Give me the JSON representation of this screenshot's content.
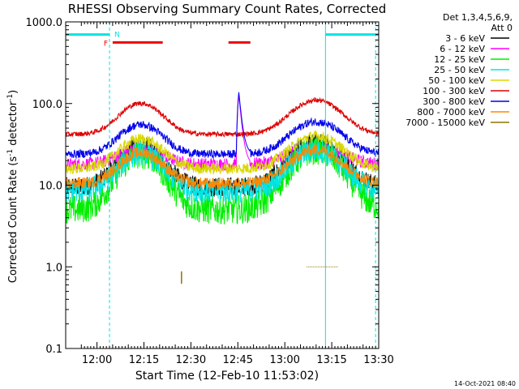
{
  "chart_data": {
    "type": "line",
    "title": "RHESSI Observing Summary Count Rates, Corrected",
    "xlabel": "Start Time (12-Feb-10 11:53:02)",
    "ylabel_main": "Corrected Count Rate (s",
    "ylabel_sup1": "-1",
    "ylabel_mid": " detector",
    "ylabel_sup2": "-1",
    "ylabel_end": ")",
    "y_scale": "log",
    "ylim": [
      0.1,
      1000
    ],
    "xlim_minutes": [
      -3,
      97
    ],
    "x_ticks": [
      {
        "t": 7,
        "label": "12:00"
      },
      {
        "t": 22,
        "label": "12:15"
      },
      {
        "t": 37,
        "label": "12:30"
      },
      {
        "t": 52,
        "label": "12:45"
      },
      {
        "t": 67,
        "label": "13:00"
      },
      {
        "t": 82,
        "label": "13:15"
      },
      {
        "t": 97,
        "label": "13:30"
      }
    ],
    "y_ticks": [
      {
        "v": 1000,
        "label": "1000.0"
      },
      {
        "v": 100,
        "label": "100.0"
      },
      {
        "v": 10,
        "label": "10.0"
      },
      {
        "v": 1,
        "label": "1.0"
      },
      {
        "v": 0.1,
        "label": "0.1"
      }
    ],
    "legend_header": [
      "Det 1,3,4,5,6,9,",
      "Att 0"
    ],
    "legend_position": "right",
    "footer_date": "14-Oct-2021 08:40",
    "flag_labels": {
      "flare": "F",
      "night": "N"
    },
    "series": [
      {
        "name": "3 - 6 keV",
        "color": "#000000",
        "base": 9.5,
        "amp": 3.2,
        "noise": 0.12
      },
      {
        "name": "6 - 12 keV",
        "color": "#ff00ff",
        "base": 18,
        "amp": 1.6,
        "noise": 0.08,
        "spike": {
          "t": 52.3,
          "peak": 130
        }
      },
      {
        "name": "12 - 25 keV",
        "color": "#00ee00",
        "base": 5,
        "amp": 4.8,
        "noise": 0.18
      },
      {
        "name": "25 - 50 keV",
        "color": "#00e5e5",
        "base": 8.5,
        "amp": 2.9,
        "noise": 0.15
      },
      {
        "name": "50 - 100 keV",
        "color": "#d8d800",
        "base": 16,
        "amp": 2.3,
        "noise": 0.07
      },
      {
        "name": "100 - 300 keV",
        "color": "#dd0000",
        "base": 42,
        "amp": 2.4,
        "noise": 0.03
      },
      {
        "name": "300 - 800 keV",
        "color": "#0000ee",
        "base": 24,
        "amp": 2.3,
        "noise": 0.05,
        "spike": {
          "t": 52.3,
          "peak": 140
        }
      },
      {
        "name": "800 - 7000 keV",
        "color": "#ff8800",
        "base": 10.5,
        "amp": 2.4,
        "noise": 0.07
      },
      {
        "name": "7000 - 15000 keV",
        "color": "#8b7500",
        "points": [
          [
            34,
            0.62
          ],
          [
            34,
            0.88
          ],
          [
            74,
            1.0
          ],
          [
            84,
            1.0
          ]
        ]
      }
    ],
    "attenuator_bars": [
      {
        "color": "#00e5e5",
        "level": 700,
        "ranges": [
          [
            -3,
            11
          ],
          [
            80,
            97
          ]
        ]
      },
      {
        "color": "#ee0000",
        "level": 560,
        "ranges": [
          [
            12,
            28
          ],
          [
            49,
            56
          ]
        ]
      }
    ],
    "vertical_markers": [
      {
        "t": -3,
        "style": "solid",
        "color": "#00e5e5"
      },
      {
        "t": 11,
        "style": "dashed",
        "color": "#00e5e5"
      },
      {
        "t": 80,
        "style": "solid",
        "color": "#00e5e5"
      },
      {
        "t": 96,
        "style": "dashed",
        "color": "#00e5e5"
      }
    ]
  }
}
